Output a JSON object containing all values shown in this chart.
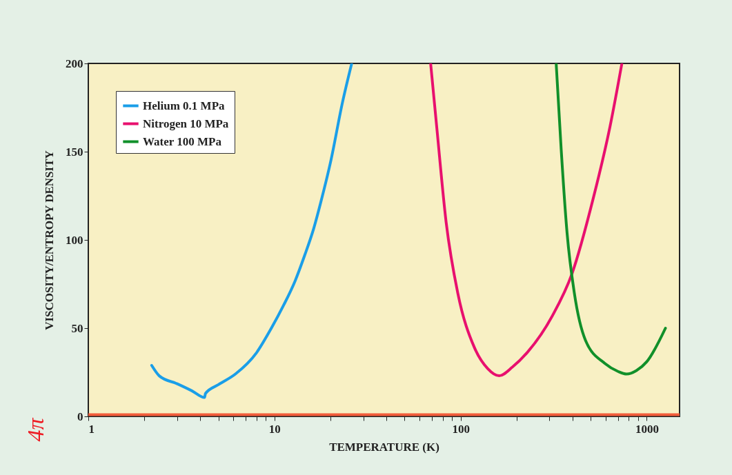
{
  "chart_data": {
    "type": "line",
    "xlabel": "TEMPERATURE (K)",
    "ylabel": "VISCOSITY/ENTROPY DENSITY",
    "annotations": [
      {
        "text": "4π",
        "x": 1,
        "y": 1
      }
    ],
    "log": "x",
    "xlim": [
      1,
      1500
    ],
    "xticks": [
      1,
      {
        "value": 2,
        "label": null
      },
      {
        "value": 3,
        "label": null
      },
      {
        "value": 4,
        "label": null
      },
      {
        "value": 5,
        "label": null
      },
      {
        "value": 6,
        "label": null
      },
      {
        "value": 7,
        "label": null
      },
      {
        "value": 8,
        "label": null
      },
      {
        "value": 9,
        "label": null
      },
      10,
      {
        "value": 20,
        "label": null
      },
      {
        "value": 30,
        "label": null
      },
      {
        "value": 40,
        "label": null
      },
      {
        "value": 50,
        "label": null
      },
      {
        "value": 60,
        "label": null
      },
      {
        "value": 70,
        "label": null
      },
      {
        "value": 80,
        "label": null
      },
      {
        "value": 90,
        "label": null
      },
      100,
      {
        "value": 200,
        "label": null
      },
      {
        "value": 300,
        "label": null
      },
      {
        "value": 400,
        "label": null
      },
      {
        "value": 500,
        "label": null
      },
      {
        "value": 600,
        "label": null
      },
      {
        "value": 700,
        "label": null
      },
      {
        "value": 800,
        "label": null
      },
      {
        "value": 900,
        "label": null
      },
      1000
    ],
    "ylim": [
      0,
      200
    ],
    "yticks": [
      0,
      50,
      100,
      150,
      200
    ],
    "grid": false,
    "legend": "top left",
    "marker": "none",
    "line_style": "solid",
    "ref_lines": [
      {
        "axis": "y",
        "value": 1,
        "color": "#f25c3a"
      }
    ],
    "series": [
      {
        "name": "Helium 0.1 MPa",
        "color": "#1a9ee8",
        "x": [
          2.19,
          2.41,
          3.0,
          3.6,
          4.21,
          4.26,
          5.0,
          6.17,
          8.0,
          9.6,
          11.2,
          12.9,
          14.5,
          16.2,
          18.0,
          20.0,
          23.2,
          26.0
        ],
        "values": [
          28.9,
          22.9,
          18.5,
          14.5,
          10.7,
          13,
          18,
          24,
          36,
          49.8,
          63,
          76.7,
          91,
          106,
          124,
          144,
          178,
          200
        ]
      },
      {
        "name": "Nitrogen 10 MPa",
        "color": "#e8106e",
        "x": [
          69,
          74.4,
          83.6,
          96.5,
          118.6,
          140,
          161,
          190,
          227,
          311,
          397,
          517,
          634,
          735
        ],
        "values": [
          200,
          164,
          110,
          70,
          39,
          27,
          23,
          28,
          36,
          57,
          81,
          124,
          164,
          200
        ]
      },
      {
        "name": "Water 100 MPa",
        "color": "#11902a",
        "x": [
          326,
          347,
          373,
          408,
          469,
          596,
          700,
          779,
          880,
          1000,
          1260
        ],
        "values": [
          200,
          151,
          104,
          70,
          43,
          30,
          25.5,
          24,
          26,
          31,
          50
        ]
      }
    ]
  }
}
